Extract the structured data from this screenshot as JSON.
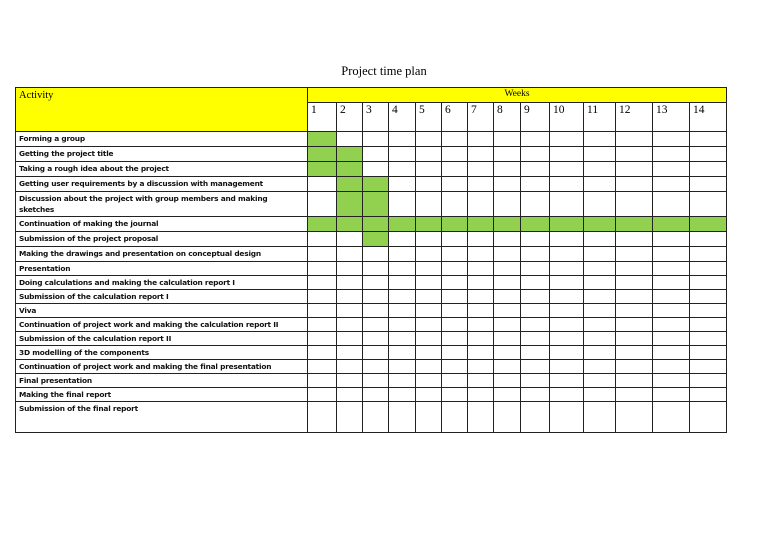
{
  "title": "Project time plan",
  "header": {
    "activity_label": "Activity",
    "weeks_label": "Weeks",
    "weeks": [
      "1",
      "2",
      "3",
      "4",
      "5",
      "6",
      "7",
      "8",
      "9",
      "10",
      "11",
      "12",
      "13",
      "14"
    ]
  },
  "colors": {
    "header": "#ffff00",
    "scheduled": "#92d050"
  },
  "activities": [
    {
      "label": "Forming a group",
      "weeks": [
        1
      ]
    },
    {
      "label": "Getting the project title",
      "weeks": [
        1,
        2
      ]
    },
    {
      "label": "Taking a rough idea about the project",
      "weeks": [
        1,
        2
      ]
    },
    {
      "label": "Getting user requirements by a discussion with management",
      "weeks": [
        2,
        3
      ]
    },
    {
      "label": "Discussion about the project with group members and making sketches",
      "weeks": [
        2,
        3
      ]
    },
    {
      "label": "Continuation of making the journal",
      "weeks": [
        1,
        2,
        3,
        4,
        5,
        6,
        7,
        8,
        9,
        10,
        11,
        12,
        13,
        14
      ]
    },
    {
      "label": "Submission of the project proposal",
      "weeks": [
        3
      ]
    },
    {
      "label": "Making the drawings and presentation on conceptual design",
      "weeks": []
    },
    {
      "label": "Presentation",
      "weeks": []
    },
    {
      "label": "Doing calculations and making the calculation report I",
      "weeks": []
    },
    {
      "label": "Submission of the calculation report I",
      "weeks": []
    },
    {
      "label": "Viva",
      "weeks": []
    },
    {
      "label": "Continuation of project work and making the calculation report II",
      "weeks": []
    },
    {
      "label": "Submission of the calculation report II",
      "weeks": []
    },
    {
      "label": "3D modelling of the components",
      "weeks": []
    },
    {
      "label": "Continuation of project work and making the final presentation",
      "weeks": []
    },
    {
      "label": "Final presentation",
      "weeks": []
    },
    {
      "label": "Making the final report",
      "weeks": []
    },
    {
      "label": "Submission of the final report",
      "weeks": []
    }
  ]
}
